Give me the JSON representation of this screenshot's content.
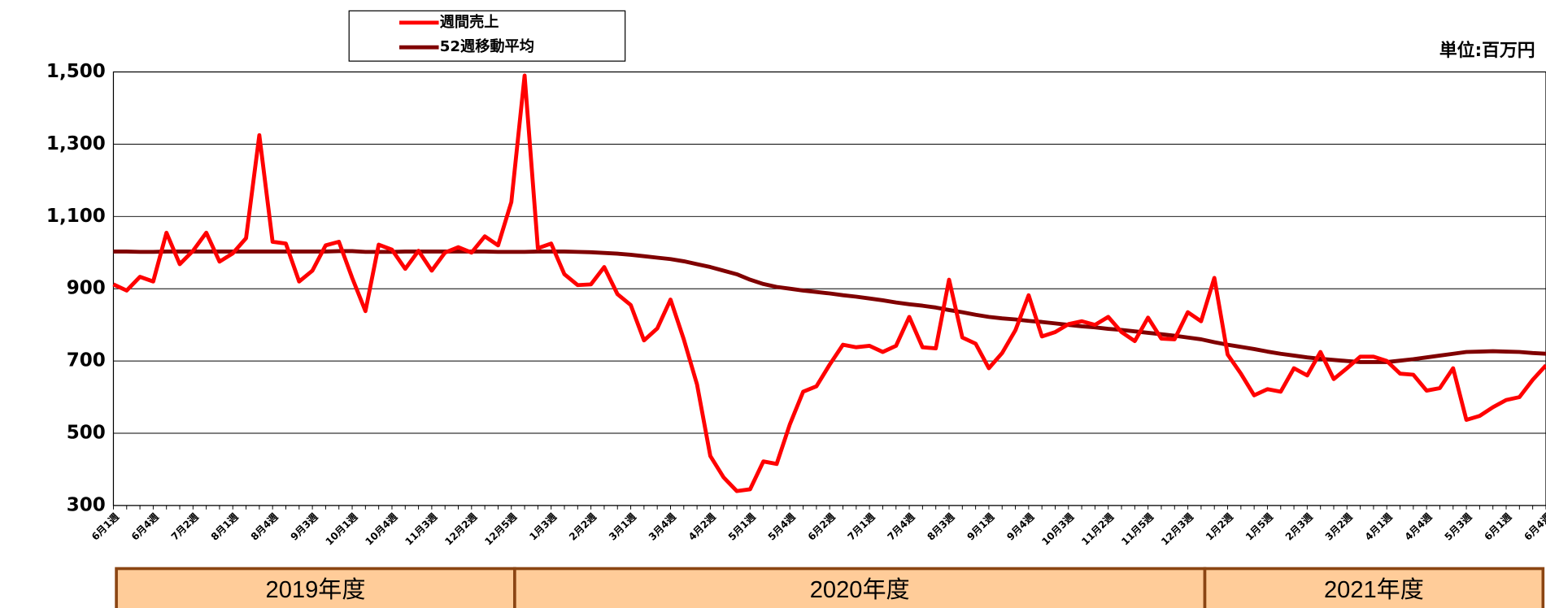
{
  "chart_data": {
    "type": "line",
    "unit_label": "単位:百万円",
    "categories": [
      "6月1週",
      null,
      null,
      "6月4週",
      null,
      null,
      "7月2週",
      null,
      null,
      "8月1週",
      null,
      null,
      "8月4週",
      null,
      null,
      "9月3週",
      null,
      null,
      "10月1週",
      null,
      null,
      "10月4週",
      null,
      null,
      "11月3週",
      null,
      null,
      "12月2週",
      null,
      null,
      "12月5週",
      null,
      null,
      "1月3週",
      null,
      null,
      "2月2週",
      null,
      null,
      "3月1週",
      null,
      null,
      "3月4週",
      null,
      null,
      "4月2週",
      null,
      null,
      "5月1週",
      null,
      null,
      "5月4週",
      null,
      null,
      "6月2週",
      null,
      null,
      "7月1週",
      null,
      null,
      "7月4週",
      null,
      null,
      "8月3週",
      null,
      null,
      "9月1週",
      null,
      null,
      "9月4週",
      null,
      null,
      "10月3週",
      null,
      null,
      "11月2週",
      null,
      null,
      "11月5週",
      null,
      null,
      "12月3週",
      null,
      null,
      "1月2週",
      null,
      null,
      "1月5週",
      null,
      null,
      "2月3週",
      null,
      null,
      "3月2週",
      null,
      null,
      "4月1週",
      null,
      null,
      "4月4週",
      null,
      null,
      "5月3週",
      null,
      null,
      "6月1週",
      null,
      null,
      "6月4週"
    ],
    "series": [
      {
        "name": "週間売上",
        "color": "#ff0000",
        "values": [
          912,
          895,
          933,
          920,
          1055,
          968,
          1005,
          1055,
          975,
          998,
          1040,
          1325,
          1030,
          1025,
          920,
          950,
          1020,
          1030,
          930,
          838,
          1022,
          1008,
          955,
          1005,
          950,
          1000,
          1015,
          1000,
          1045,
          1020,
          1140,
          1490,
          1012,
          1025,
          940,
          910,
          912,
          960,
          885,
          855,
          757,
          790,
          870,
          760,
          635,
          437,
          378,
          340,
          345,
          422,
          415,
          525,
          615,
          630,
          690,
          745,
          738,
          742,
          725,
          742,
          822,
          738,
          735,
          925,
          765,
          748,
          680,
          722,
          785,
          882,
          768,
          780,
          802,
          810,
          800,
          822,
          780,
          755,
          820,
          762,
          760,
          835,
          810,
          930,
          718,
          665,
          605,
          622,
          615,
          680,
          660,
          725,
          650,
          680,
          712,
          712,
          700,
          665,
          662,
          618,
          625,
          680,
          537,
          548,
          572,
          592,
          600,
          648,
          688
        ]
      },
      {
        "name": "52週移動平均",
        "color": "#800000",
        "values": [
          1003,
          1003,
          1002,
          1002,
          1003,
          1003,
          1003,
          1003,
          1003,
          1003,
          1003,
          1003,
          1003,
          1003,
          1003,
          1003,
          1003,
          1004,
          1004,
          1002,
          1002,
          1002,
          1003,
          1003,
          1003,
          1003,
          1003,
          1003,
          1003,
          1002,
          1002,
          1002,
          1003,
          1003,
          1003,
          1002,
          1001,
          999,
          997,
          994,
          990,
          986,
          982,
          976,
          968,
          960,
          950,
          940,
          925,
          913,
          905,
          900,
          895,
          891,
          887,
          882,
          878,
          873,
          868,
          862,
          857,
          853,
          848,
          841,
          835,
          828,
          822,
          818,
          815,
          811,
          808,
          804,
          800,
          796,
          793,
          789,
          786,
          782,
          778,
          774,
          770,
          765,
          760,
          752,
          745,
          739,
          733,
          726,
          720,
          715,
          710,
          706,
          703,
          700,
          697,
          697,
          697,
          701,
          705,
          710,
          715,
          720,
          725,
          726,
          727,
          726,
          725,
          722,
          720
        ]
      }
    ],
    "ylim": [
      300,
      1500
    ],
    "yticks": [
      300,
      500,
      700,
      900,
      {
        "value": 1100,
        "label": "1,100"
      },
      {
        "value": 1300,
        "label": "1,300"
      },
      {
        "value": 1500,
        "label": "1,500"
      }
    ],
    "grid": true,
    "fiscal_years": [
      "2019年度",
      "2020年度",
      "2021年度"
    ]
  }
}
